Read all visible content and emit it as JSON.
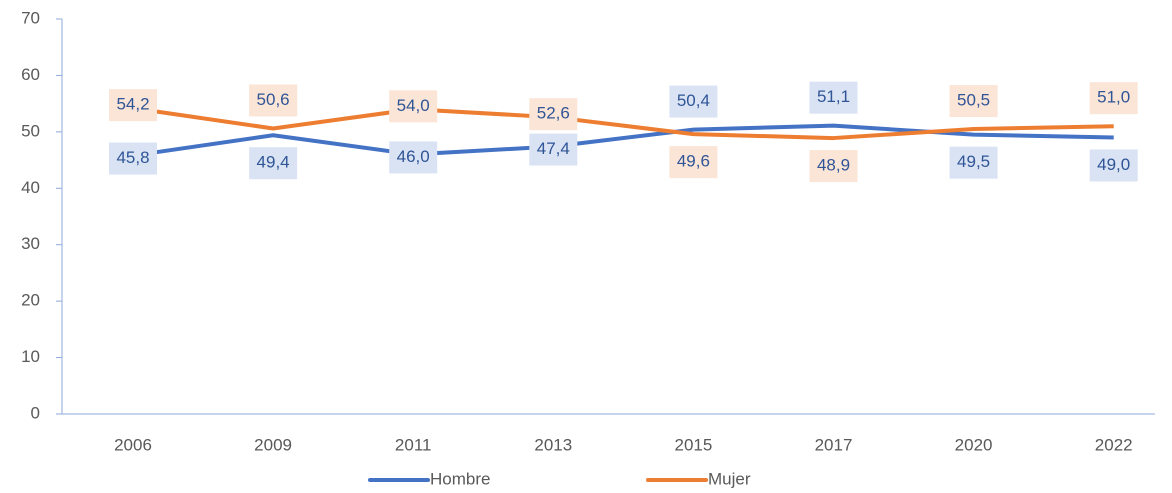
{
  "chart_data": {
    "type": "line",
    "categories": [
      "2006",
      "2009",
      "2011",
      "2013",
      "2015",
      "2017",
      "2020",
      "2022"
    ],
    "series": [
      {
        "name": "Hombre",
        "color": "#4472c4",
        "label_bg": "#dae3f3",
        "values": [
          45.8,
          49.4,
          46.0,
          47.4,
          50.4,
          51.1,
          49.5,
          49.0
        ],
        "value_labels": [
          "45,8",
          "49,4",
          "46,0",
          "47,4",
          "50,4",
          "51,1",
          "49,5",
          "49,0"
        ]
      },
      {
        "name": "Mujer",
        "color": "#ed7d31",
        "label_bg": "#fbe5d6",
        "values": [
          54.2,
          50.6,
          54.0,
          52.6,
          49.6,
          48.9,
          50.5,
          51.0
        ],
        "value_labels": [
          "54,2",
          "50,6",
          "54,0",
          "52,6",
          "49,6",
          "48,9",
          "50,5",
          "51,0"
        ]
      }
    ],
    "ylim": [
      0,
      70
    ],
    "yticks": [
      0,
      10,
      20,
      30,
      40,
      50,
      60,
      70
    ],
    "grid": false,
    "legend": "bottom"
  }
}
